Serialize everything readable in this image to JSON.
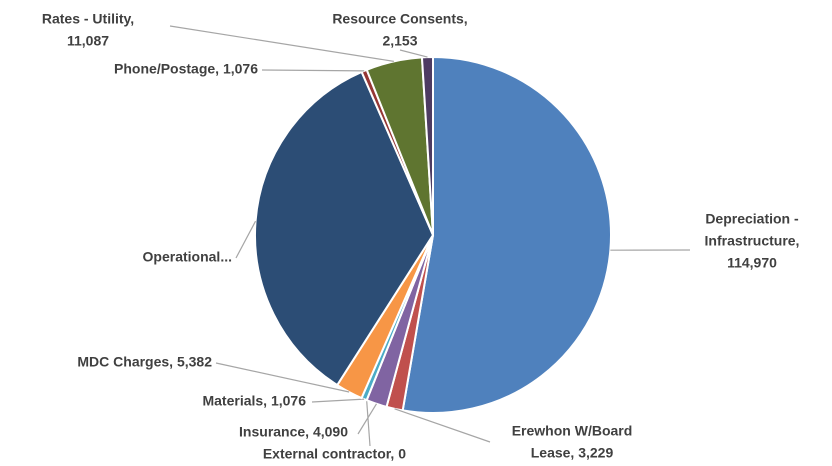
{
  "chart_data": {
    "type": "pie",
    "categories": [
      "Depreciation - Infrastructure",
      "Erewhon W/Board Lease",
      "Insurance",
      "External contractor",
      "Materials",
      "MDC Charges",
      "Operational",
      "Phone/Postage",
      "Rates - Utility",
      "Resource Consents"
    ],
    "values": [
      114970,
      3229,
      4090,
      0,
      1076,
      5382,
      75000,
      1076,
      11087,
      2153
    ],
    "labels": [
      [
        "Depreciation -",
        "Infrastructure,",
        "114,970"
      ],
      [
        "Erewhon W/Board",
        "Lease, 3,229"
      ],
      [
        "Insurance, 4,090"
      ],
      [
        "External contractor, 0"
      ],
      [
        "Materials, 1,076"
      ],
      [
        "MDC Charges, 5,382"
      ],
      [
        "Operational..."
      ],
      [
        "Phone/Postage, 1,076"
      ],
      [
        "Rates - Utility,",
        "11,087"
      ],
      [
        "Resource Consents,",
        "2,153"
      ]
    ],
    "colors": [
      "#4f81bd",
      "#c0504d",
      "#8064a2",
      "#4bacc6",
      "#4bacc6",
      "#f79646",
      "#2c4d75",
      "#953735",
      "#5f7530",
      "#4d3b62"
    ]
  }
}
